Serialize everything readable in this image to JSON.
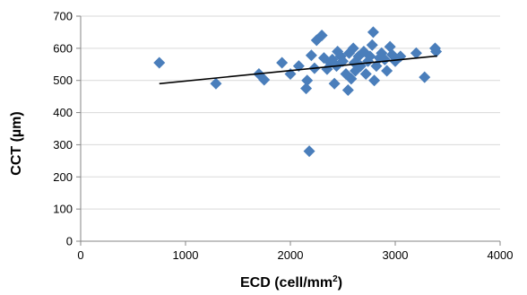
{
  "chart_data": {
    "type": "scatter",
    "title": "",
    "xlabel": "ECD (cell/mm",
    "xlabel_superscript": "2",
    "xlabel_suffix": ")",
    "ylabel": "CCT (µm)",
    "xlim": [
      0,
      4000
    ],
    "ylim": [
      0,
      700
    ],
    "x_ticks": [
      "0",
      "1000",
      "2000",
      "3000",
      "4000"
    ],
    "y_ticks": [
      "0",
      "100",
      "200",
      "300",
      "400",
      "500",
      "600",
      "700"
    ],
    "grid": "horizontal",
    "legend": "none",
    "marker": "diamond",
    "marker_color": "#4a7ebb",
    "trendline": {
      "type": "linear",
      "x": [
        750,
        3400
      ],
      "y": [
        490,
        576
      ],
      "color": "#000000"
    },
    "points": [
      [
        750,
        555
      ],
      [
        1290,
        490
      ],
      [
        1700,
        520
      ],
      [
        1750,
        502
      ],
      [
        1920,
        555
      ],
      [
        2000,
        520
      ],
      [
        2080,
        545
      ],
      [
        2150,
        475
      ],
      [
        2160,
        500
      ],
      [
        2180,
        280
      ],
      [
        2200,
        578
      ],
      [
        2230,
        538
      ],
      [
        2250,
        625
      ],
      [
        2300,
        640
      ],
      [
        2320,
        570
      ],
      [
        2350,
        535
      ],
      [
        2380,
        555
      ],
      [
        2400,
        565
      ],
      [
        2420,
        490
      ],
      [
        2440,
        545
      ],
      [
        2450,
        590
      ],
      [
        2480,
        575
      ],
      [
        2500,
        560
      ],
      [
        2530,
        520
      ],
      [
        2550,
        470
      ],
      [
        2560,
        585
      ],
      [
        2580,
        505
      ],
      [
        2600,
        600
      ],
      [
        2610,
        555
      ],
      [
        2620,
        530
      ],
      [
        2650,
        575
      ],
      [
        2670,
        545
      ],
      [
        2700,
        590
      ],
      [
        2720,
        520
      ],
      [
        2740,
        560
      ],
      [
        2760,
        575
      ],
      [
        2780,
        610
      ],
      [
        2790,
        650
      ],
      [
        2800,
        500
      ],
      [
        2820,
        545
      ],
      [
        2850,
        570
      ],
      [
        2870,
        585
      ],
      [
        2900,
        565
      ],
      [
        2920,
        530
      ],
      [
        2950,
        605
      ],
      [
        2970,
        580
      ],
      [
        3000,
        560
      ],
      [
        3050,
        575
      ],
      [
        3200,
        585
      ],
      [
        3280,
        510
      ],
      [
        3380,
        600
      ],
      [
        3390,
        590
      ]
    ]
  }
}
